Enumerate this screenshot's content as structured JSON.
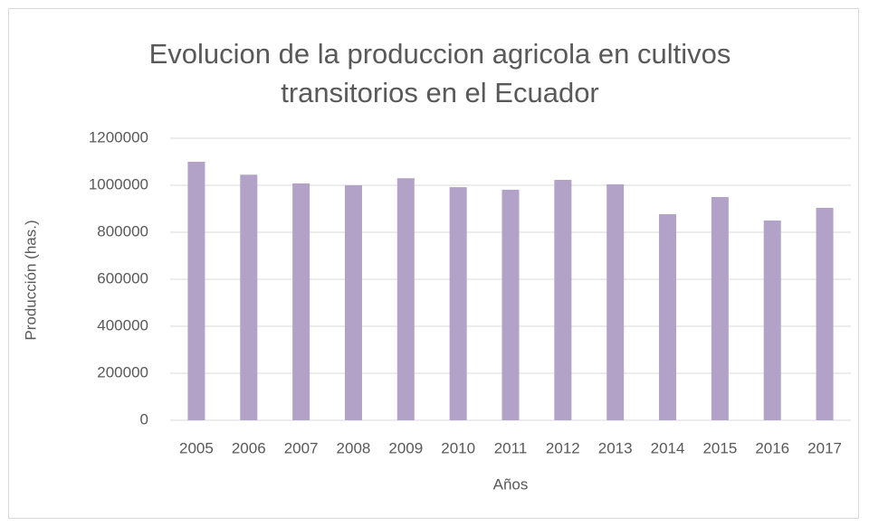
{
  "chart_data": {
    "type": "bar",
    "title": "Evolucion de la produccion agricola en cultivos transitorios en el Ecuador",
    "x_label": "Años",
    "y_label": "Producción (has.)",
    "categories": [
      "2005",
      "2006",
      "2007",
      "2008",
      "2009",
      "2010",
      "2011",
      "2012",
      "2013",
      "2014",
      "2015",
      "2016",
      "2017"
    ],
    "values": [
      1100000,
      1045000,
      1008000,
      1000000,
      1030000,
      992000,
      981000,
      1023000,
      1004000,
      877000,
      950000,
      850000,
      904000
    ],
    "color": "#b3a2c7",
    "ylim": [
      0,
      1200000
    ],
    "yticks": [
      0,
      200000,
      400000,
      600000,
      800000,
      1000000,
      1200000
    ],
    "grid": true
  }
}
